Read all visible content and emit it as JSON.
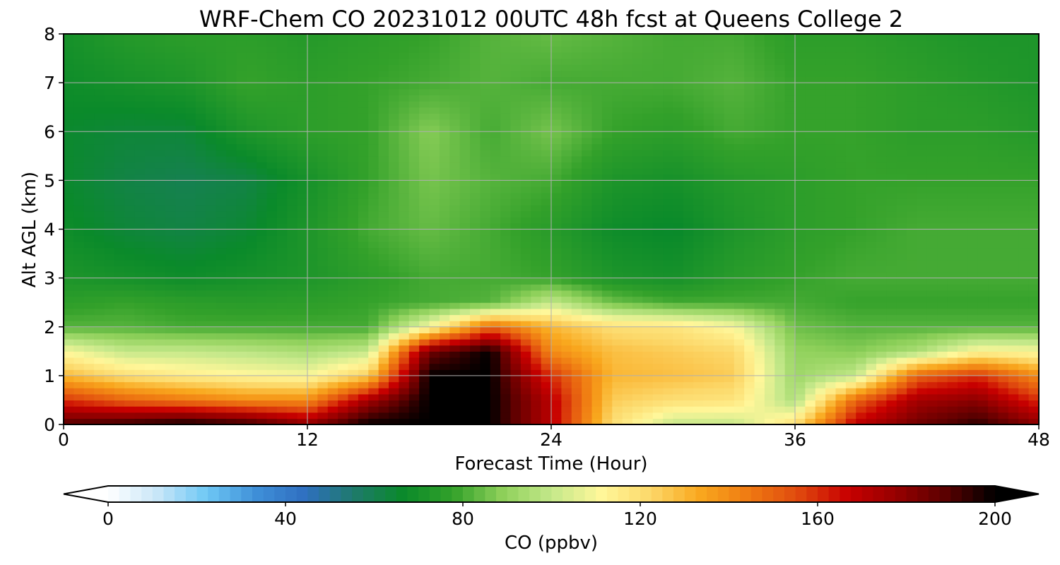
{
  "chart_data": {
    "type": "heatmap",
    "title": "WRF-Chem CO  20231012 00UTC 48h fcst at Queens College 2",
    "xlabel": "Forecast Time (Hour)",
    "ylabel": "Alt AGL (km)",
    "xlim": [
      0,
      48
    ],
    "ylim": [
      0,
      8
    ],
    "x_ticks": [
      "0",
      "12",
      "24",
      "36",
      "48"
    ],
    "y_ticks": [
      "0",
      "1",
      "2",
      "3",
      "4",
      "5",
      "6",
      "7",
      "8"
    ],
    "grid": true,
    "value_unit": "ppbv",
    "colorbar": {
      "label": "CO  (ppbv)",
      "min": 0,
      "max": 200,
      "extend": "both",
      "ticks": [
        "0",
        "40",
        "80",
        "120",
        "160",
        "200"
      ],
      "colors": [
        "#ffffff",
        "#c8e6f8",
        "#6ec8f5",
        "#3f8fd8",
        "#2f6fc0",
        "#1e7a6a",
        "#0a8a2a",
        "#33a12a",
        "#8ed05a",
        "#c4e88a",
        "#fff79a",
        "#fcd86a",
        "#f9a81e",
        "#ef7a12",
        "#e04a0e",
        "#c80000",
        "#960000",
        "#5a0000",
        "#000000"
      ]
    },
    "columns_hours": [
      0,
      3,
      6,
      9,
      12,
      15,
      18,
      21,
      24,
      27,
      30,
      33,
      36,
      39,
      42,
      45,
      48
    ],
    "rows_km": [
      0,
      0.5,
      1,
      1.5,
      2,
      2.5,
      3,
      4,
      5,
      6,
      7,
      8
    ],
    "values_ppbv": [
      [
        190,
        195,
        200,
        195,
        180,
        200,
        200,
        200,
        170,
        120,
        100,
        100,
        120,
        170,
        185,
        195,
        180
      ],
      [
        160,
        150,
        145,
        140,
        140,
        175,
        200,
        200,
        170,
        125,
        120,
        118,
        95,
        150,
        175,
        180,
        160
      ],
      [
        130,
        120,
        115,
        112,
        110,
        125,
        200,
        200,
        160,
        130,
        128,
        125,
        92,
        100,
        150,
        160,
        140
      ],
      [
        110,
        100,
        100,
        98,
        95,
        100,
        185,
        200,
        140,
        128,
        125,
        122,
        90,
        88,
        95,
        112,
        110
      ],
      [
        82,
        82,
        80,
        80,
        80,
        80,
        110,
        150,
        130,
        120,
        118,
        110,
        85,
        82,
        82,
        82,
        82
      ],
      [
        76,
        78,
        76,
        75,
        76,
        78,
        80,
        82,
        100,
        85,
        80,
        80,
        80,
        78,
        78,
        78,
        78
      ],
      [
        72,
        70,
        68,
        70,
        72,
        76,
        80,
        80,
        78,
        72,
        70,
        75,
        78,
        80,
        80,
        80,
        80
      ],
      [
        68,
        64,
        62,
        65,
        72,
        80,
        84,
        80,
        75,
        68,
        66,
        72,
        76,
        78,
        80,
        80,
        80
      ],
      [
        66,
        62,
        60,
        62,
        70,
        78,
        86,
        82,
        80,
        72,
        70,
        74,
        76,
        78,
        78,
        78,
        78
      ],
      [
        66,
        64,
        64,
        72,
        76,
        78,
        88,
        80,
        86,
        78,
        76,
        80,
        78,
        78,
        76,
        76,
        74
      ],
      [
        68,
        70,
        72,
        78,
        76,
        78,
        80,
        82,
        80,
        80,
        80,
        82,
        78,
        78,
        76,
        74,
        72
      ],
      [
        70,
        74,
        76,
        76,
        74,
        76,
        78,
        82,
        84,
        82,
        80,
        80,
        76,
        76,
        74,
        72,
        72
      ]
    ]
  }
}
